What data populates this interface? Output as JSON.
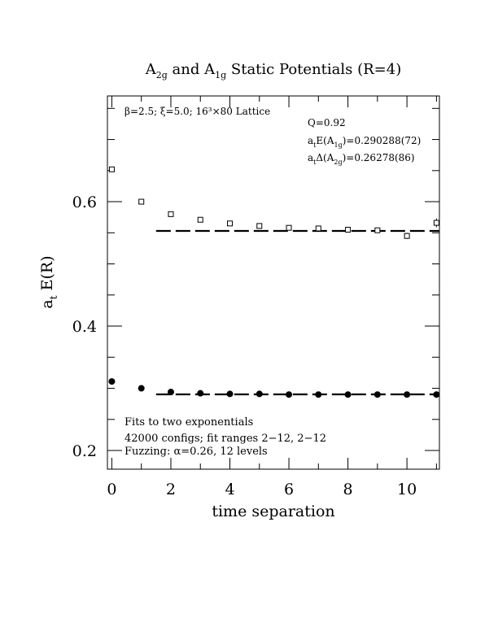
{
  "chart_data": {
    "type": "scatter",
    "title": {
      "pre": "A",
      "sub1": "2g",
      "mid": " and A",
      "sub2": "1g",
      "post": " Static Potentials (R=4)"
    },
    "xlabel": "time separation",
    "ylabel": {
      "pre": "a",
      "sub": "t",
      "post": " E(R)"
    },
    "xlim": [
      -0.15,
      11.1
    ],
    "ylim": [
      0.17,
      0.77
    ],
    "x_ticks": [
      "0",
      "2",
      "4",
      "6",
      "8",
      "10"
    ],
    "y_ticks": [
      "0.2",
      "0.4",
      "0.6"
    ],
    "annotations": {
      "lattice": "β=2.5; ξ=5.0; 16³×80 Lattice",
      "q": "Q=0.92",
      "e_a1g": {
        "pre": "a",
        "sub1": "t",
        "mid": "E(A",
        "sub2": "1g",
        "post": ")=0.290288(72)"
      },
      "d_a2g": {
        "pre": "a",
        "sub1": "t",
        "mid": "Δ(A",
        "sub2": "2g",
        "post": ")=0.26278(86)"
      },
      "fits": "Fits to two exponentials",
      "configs": "42000 configs; fit ranges 2−12, 2−12",
      "fuzzing": "Fuzzing: α=0.26, 12 levels"
    },
    "series": [
      {
        "marker": "open-square",
        "points": [
          {
            "x": 0,
            "y": 0.652
          },
          {
            "x": 1,
            "y": 0.6
          },
          {
            "x": 2,
            "y": 0.58
          },
          {
            "x": 3,
            "y": 0.571
          },
          {
            "x": 4,
            "y": 0.565
          },
          {
            "x": 5,
            "y": 0.561
          },
          {
            "x": 6,
            "y": 0.558
          },
          {
            "x": 7,
            "y": 0.557
          },
          {
            "x": 8,
            "y": 0.555
          },
          {
            "x": 9,
            "y": 0.554
          },
          {
            "x": 10,
            "y": 0.545,
            "err": 0.005
          },
          {
            "x": 11,
            "y": 0.566,
            "err": 0.007
          }
        ]
      },
      {
        "marker": "filled-circle",
        "points": [
          {
            "x": 0,
            "y": 0.311
          },
          {
            "x": 1,
            "y": 0.3
          },
          {
            "x": 2,
            "y": 0.294
          },
          {
            "x": 3,
            "y": 0.292
          },
          {
            "x": 4,
            "y": 0.291
          },
          {
            "x": 5,
            "y": 0.291
          },
          {
            "x": 6,
            "y": 0.29
          },
          {
            "x": 7,
            "y": 0.29
          },
          {
            "x": 8,
            "y": 0.29
          },
          {
            "x": 9,
            "y": 0.29
          },
          {
            "x": 10,
            "y": 0.29
          },
          {
            "x": 11,
            "y": 0.29
          }
        ]
      }
    ],
    "fit_lines": [
      {
        "x_start": 1.5,
        "x_end": 11.1,
        "y": 0.553
      },
      {
        "x_start": 1.5,
        "x_end": 11.1,
        "y": 0.2903
      }
    ]
  }
}
